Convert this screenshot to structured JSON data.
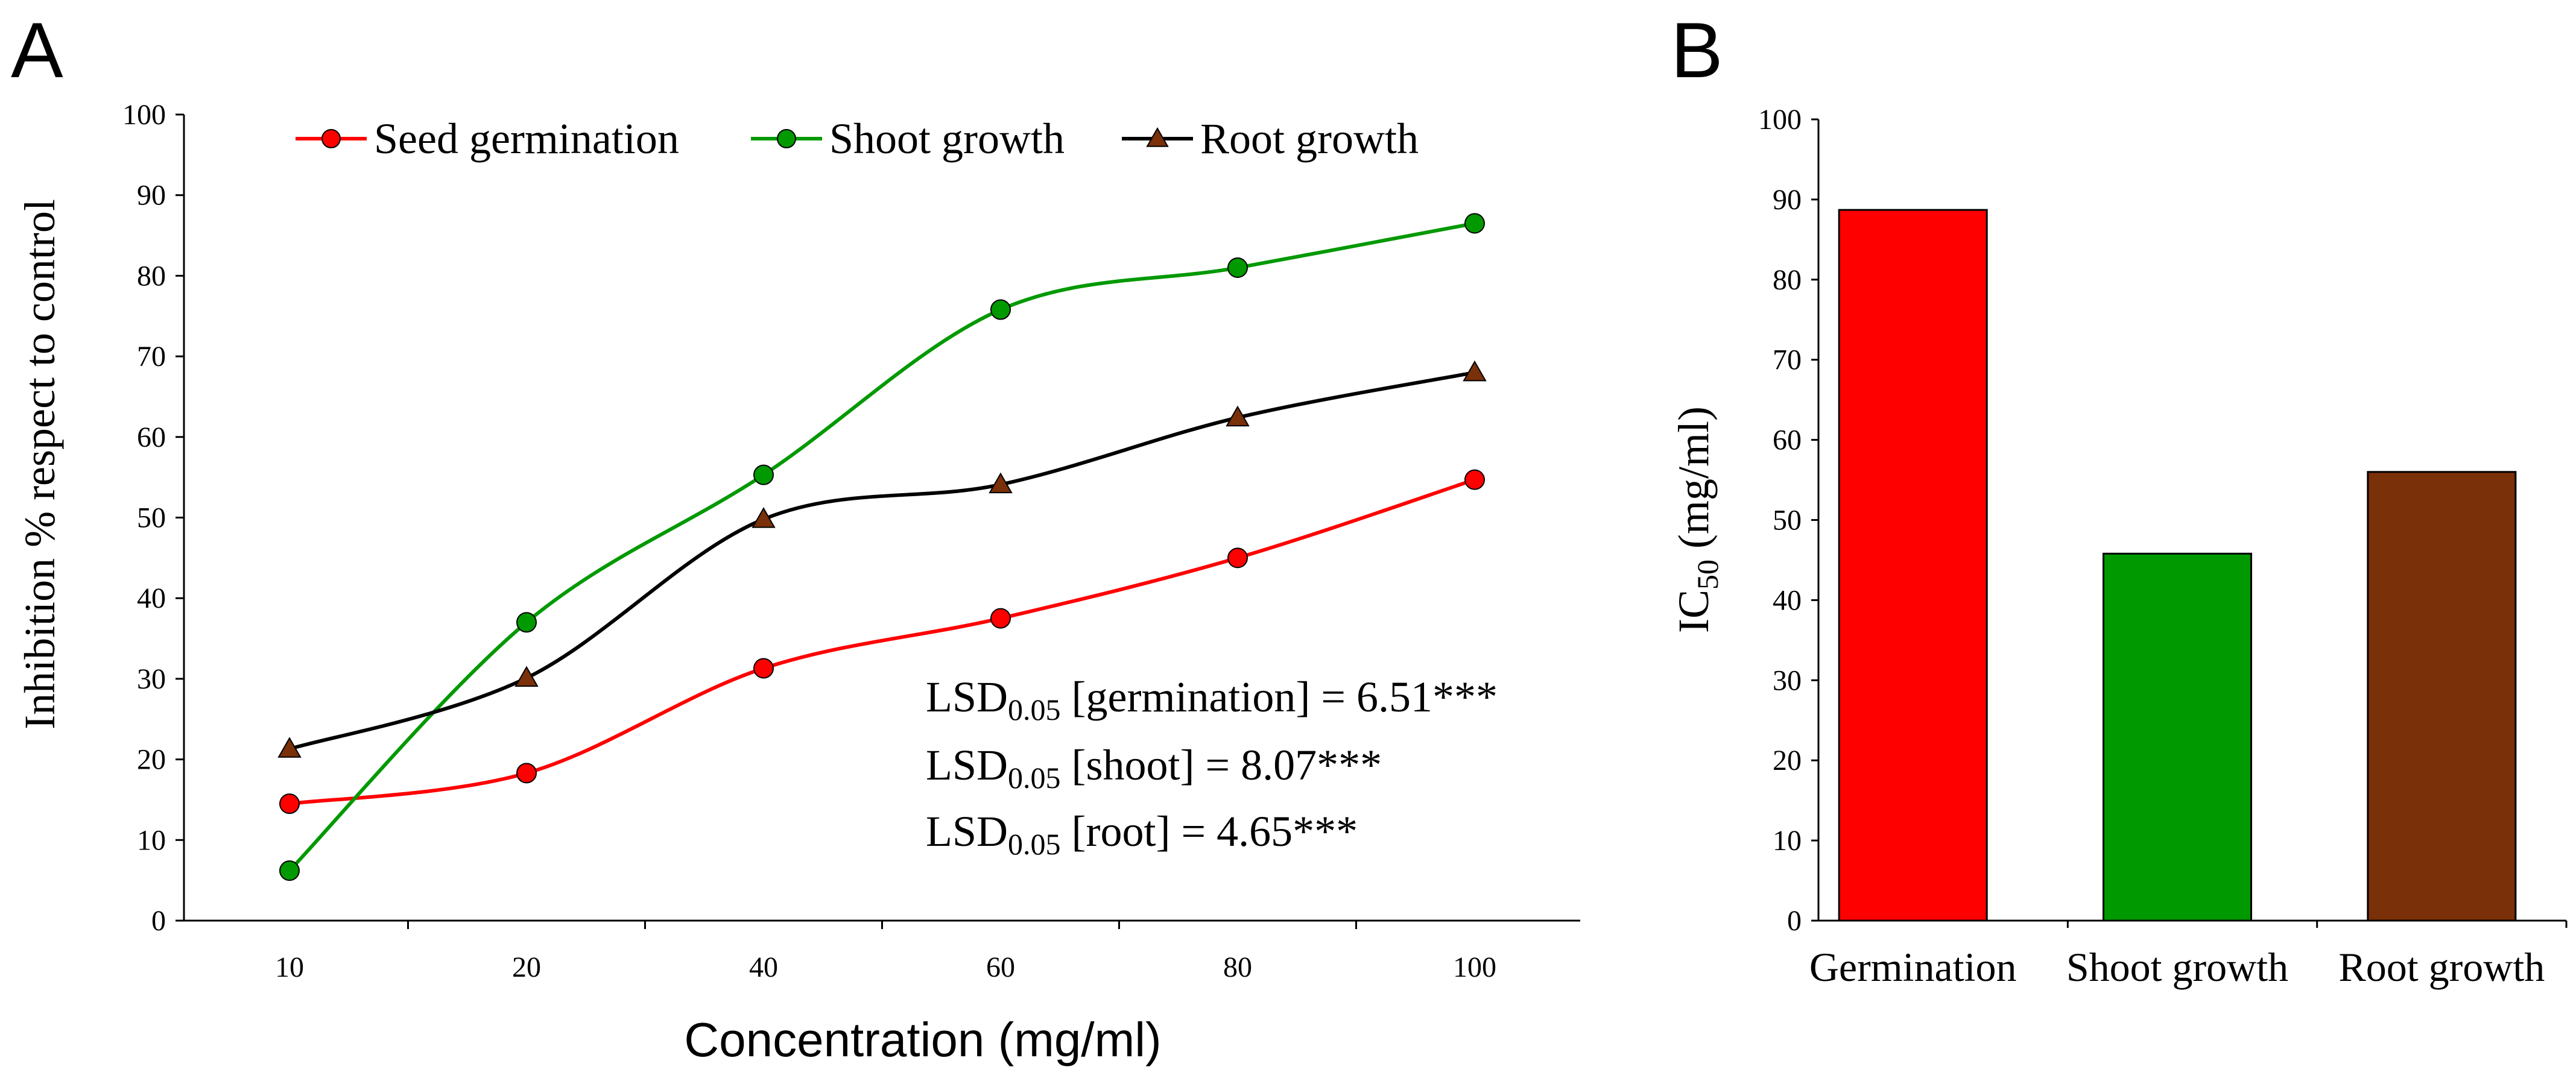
{
  "panel_a": {
    "label": "A",
    "lsd_lines": [
      {
        "prefix": "LSD",
        "sub": "0.05",
        "text": " [germination] = 6.51***"
      },
      {
        "prefix": "LSD",
        "sub": "0.05",
        "text": " [shoot] = 8.07***"
      },
      {
        "prefix": "LSD",
        "sub": "0.05",
        "text": " [root] = 4.65***"
      }
    ]
  },
  "panel_b": {
    "label": "B"
  },
  "colors": {
    "red": "#ff0000",
    "green": "#009900",
    "brown": "#7a3008",
    "black": "#000000"
  },
  "chart_data": [
    {
      "type": "line",
      "title": "",
      "xlabel": "Concentration (mg/ml)",
      "ylabel": "Inhibition % respect to control",
      "categories": [
        "10",
        "20",
        "40",
        "60",
        "80",
        "100"
      ],
      "ylim": [
        0,
        100
      ],
      "yticks": [
        0,
        10,
        20,
        30,
        40,
        50,
        60,
        70,
        80,
        90,
        100
      ],
      "legend_position": "top",
      "smooth": true,
      "series": [
        {
          "name": "Seed germination",
          "color": "#ff0000",
          "marker": "circle",
          "values": [
            14.5,
            18.3,
            31.3,
            37.5,
            45.0,
            54.7
          ]
        },
        {
          "name": "Shoot growth",
          "color": "#009900",
          "marker": "circle",
          "values": [
            6.2,
            37.0,
            55.3,
            75.8,
            81.0,
            86.5
          ]
        },
        {
          "name": "Root growth",
          "color": "#000000",
          "marker": "triangle",
          "marker_color": "#7a3008",
          "values": [
            21.3,
            30.1,
            49.8,
            54.1,
            62.4,
            68.0
          ]
        }
      ]
    },
    {
      "type": "bar",
      "title": "",
      "xlabel": "",
      "ylabel_main": "IC",
      "ylabel_sub": "50",
      "ylabel_rest": " (mg/ml)",
      "categories": [
        "Germination",
        "Shoot growth",
        "Root growth"
      ],
      "values": [
        88.7,
        45.8,
        56.0
      ],
      "colors": [
        "#ff0000",
        "#009900",
        "#7a3008"
      ],
      "ylim": [
        0,
        100
      ],
      "yticks": [
        0,
        10,
        20,
        30,
        40,
        50,
        60,
        70,
        80,
        90,
        100
      ]
    }
  ]
}
